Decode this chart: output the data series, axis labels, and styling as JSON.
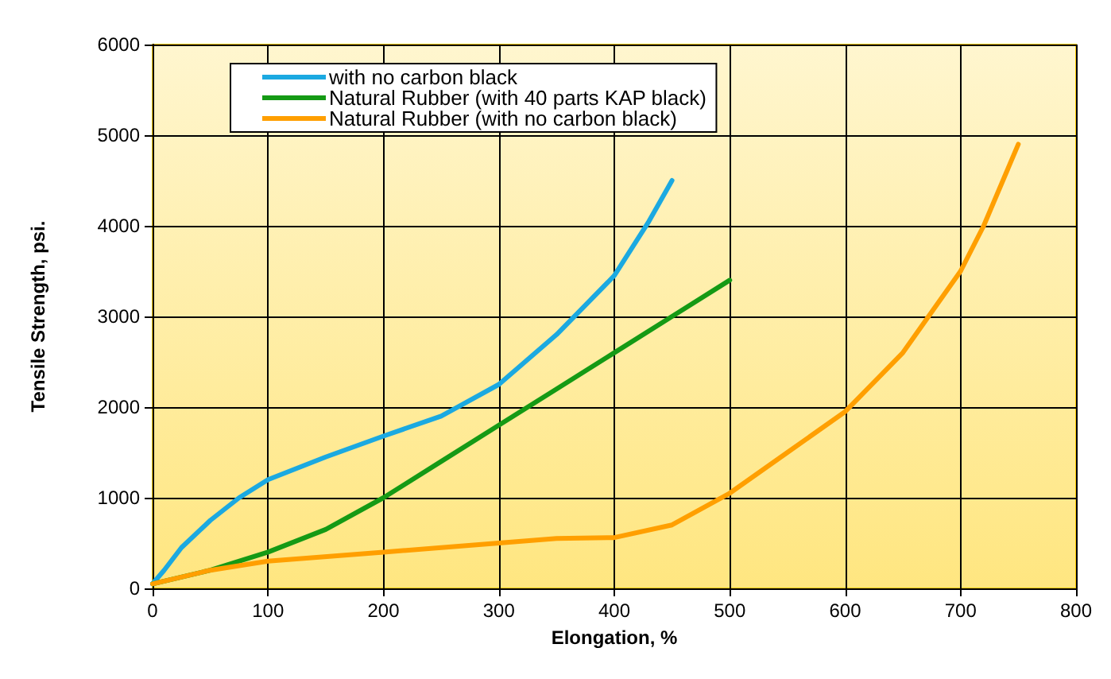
{
  "chart_data": {
    "type": "line",
    "xlabel": "Elongation, %",
    "ylabel": "Tensile Strength, psi.",
    "xlim": [
      0,
      800
    ],
    "xticks": [
      0,
      100,
      200,
      300,
      400,
      500,
      600,
      700,
      800
    ],
    "ylim": [
      0,
      6000
    ],
    "yticks": [
      0,
      1000,
      2000,
      3000,
      4000,
      5000,
      6000
    ],
    "grid": true,
    "legend": "top left",
    "marker": "none",
    "line_style": "solid",
    "series": [
      {
        "name": "with no carbon black",
        "color": "#1ba9e1",
        "x": [
          0,
          10,
          25,
          50,
          75,
          100,
          150,
          200,
          250,
          300,
          350,
          400,
          430,
          450
        ],
        "values": [
          50,
          200,
          450,
          750,
          1000,
          1200,
          1450,
          1680,
          1900,
          2250,
          2800,
          3450,
          4050,
          4500
        ]
      },
      {
        "name": "Natural Rubber (with 40 parts KAP black)",
        "color": "#159a15",
        "x": [
          0,
          50,
          100,
          150,
          200,
          250,
          300,
          350,
          400,
          450,
          500
        ],
        "values": [
          50,
          200,
          400,
          650,
          1000,
          1400,
          1800,
          2200,
          2600,
          3000,
          3400
        ]
      },
      {
        "name": "Natural Rubber (with no carbon black)",
        "color": "#ff9f00",
        "x": [
          0,
          50,
          100,
          200,
          250,
          300,
          350,
          400,
          450,
          500,
          550,
          600,
          650,
          700,
          720,
          750
        ],
        "values": [
          50,
          200,
          300,
          400,
          450,
          500,
          550,
          560,
          700,
          1050,
          1500,
          1950,
          2600,
          3500,
          4000,
          4900
        ]
      }
    ]
  }
}
